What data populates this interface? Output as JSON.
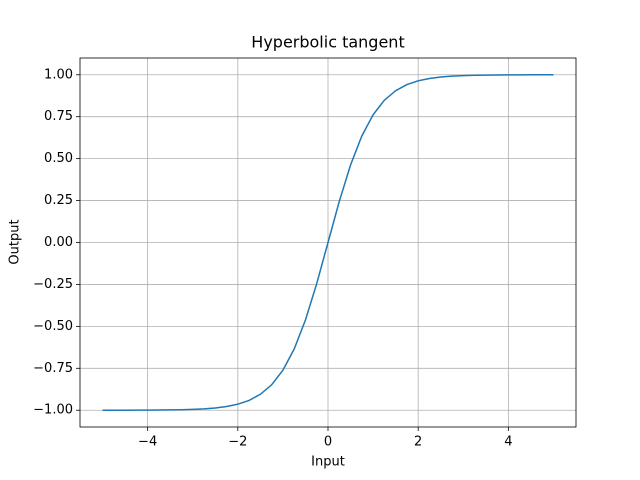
{
  "chart_data": {
    "type": "line",
    "title": "Hyperbolic tangent",
    "xlabel": "Input",
    "ylabel": "Output",
    "x": [
      -5,
      -4.75,
      -4.5,
      -4.25,
      -4,
      -3.75,
      -3.5,
      -3.25,
      -3,
      -2.75,
      -2.5,
      -2.25,
      -2,
      -1.75,
      -1.5,
      -1.25,
      -1,
      -0.75,
      -0.5,
      -0.25,
      0,
      0.25,
      0.5,
      0.75,
      1,
      1.25,
      1.5,
      1.75,
      2,
      2.25,
      2.5,
      2.75,
      3,
      3.25,
      3.5,
      3.75,
      4,
      4.25,
      4.5,
      4.75,
      5
    ],
    "series": [
      {
        "color": "#1f77b4",
        "values": [
          -0.9999,
          -0.9999,
          -0.9998,
          -0.9996,
          -0.9993,
          -0.9989,
          -0.9982,
          -0.997,
          -0.9951,
          -0.9918,
          -0.9866,
          -0.978,
          -0.964,
          -0.9414,
          -0.9051,
          -0.8483,
          -0.7616,
          -0.6351,
          -0.4621,
          -0.2449,
          0,
          0.2449,
          0.4621,
          0.6351,
          0.7616,
          0.8483,
          0.9051,
          0.9414,
          0.964,
          0.978,
          0.9866,
          0.9918,
          0.9951,
          0.997,
          0.9982,
          0.9989,
          0.9993,
          0.9996,
          0.9998,
          0.9999,
          0.9999
        ]
      }
    ],
    "xlim": [
      -5.5,
      5.5
    ],
    "ylim": [
      -1.1,
      1.1
    ],
    "xticks": [
      {
        "value": -4,
        "label": "−4"
      },
      {
        "value": -2,
        "label": "−2"
      },
      0,
      2,
      4
    ],
    "yticks": [
      {
        "value": -1,
        "label": "−1.00"
      },
      {
        "value": -0.75,
        "label": "−0.75"
      },
      {
        "value": -0.5,
        "label": "−0.50"
      },
      {
        "value": -0.25,
        "label": "−0.25"
      },
      {
        "value": 0,
        "label": "0.00"
      },
      {
        "value": 0.25,
        "label": "0.25"
      },
      {
        "value": 0.5,
        "label": "0.50"
      },
      {
        "value": 0.75,
        "label": "0.75"
      },
      {
        "value": 1,
        "label": "1.00"
      }
    ],
    "grid": true
  }
}
